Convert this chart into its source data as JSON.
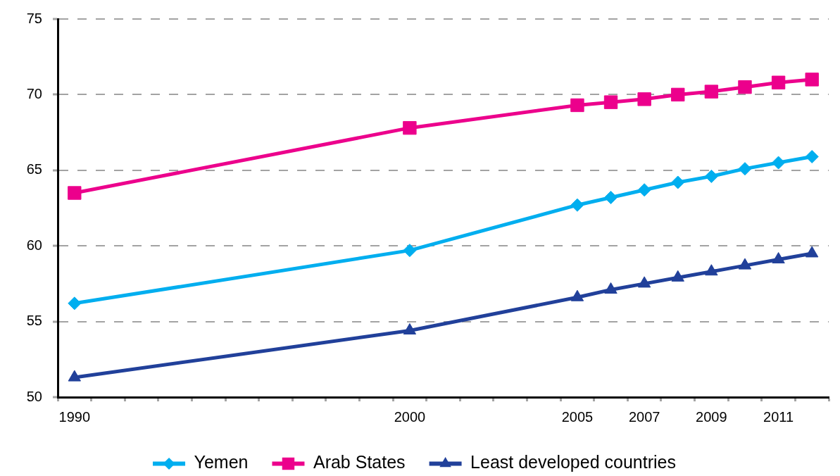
{
  "chart_data": {
    "type": "line",
    "x": [
      1990,
      2000,
      2005,
      2006,
      2007,
      2008,
      2009,
      2010,
      2011,
      2012
    ],
    "series": [
      {
        "name": "Yemen",
        "color": "#00aeef",
        "marker": "diamond",
        "values": [
          56.2,
          59.7,
          62.7,
          63.2,
          63.7,
          64.2,
          64.6,
          65.1,
          65.5,
          65.9
        ]
      },
      {
        "name": "Arab States",
        "color": "#ec008c",
        "marker": "square",
        "values": [
          63.5,
          67.8,
          69.3,
          69.5,
          69.7,
          70.0,
          70.2,
          70.5,
          70.8,
          71.0
        ]
      },
      {
        "name": "Least developed countries",
        "color": "#21409a",
        "marker": "triangle",
        "values": [
          51.3,
          54.4,
          56.6,
          57.1,
          57.5,
          57.9,
          58.3,
          58.7,
          59.1,
          59.5
        ]
      }
    ],
    "xlim": [
      1989.5,
      2012.5
    ],
    "xticks": [
      {
        "value": 1989.5,
        "label": null
      },
      1990,
      {
        "value": 1990.5,
        "label": null
      },
      {
        "value": 1991.5,
        "label": null
      },
      {
        "value": 1992.5,
        "label": null
      },
      {
        "value": 1993.5,
        "label": null
      },
      {
        "value": 1994.5,
        "label": null
      },
      {
        "value": 1995.5,
        "label": null
      },
      {
        "value": 1996.5,
        "label": null
      },
      {
        "value": 1997.5,
        "label": null
      },
      {
        "value": 1998.5,
        "label": null
      },
      {
        "value": 1999.5,
        "label": null
      },
      2000,
      {
        "value": 2000.5,
        "label": null
      },
      {
        "value": 2001.5,
        "label": null
      },
      {
        "value": 2002.5,
        "label": null
      },
      {
        "value": 2003.5,
        "label": null
      },
      {
        "value": 2004.5,
        "label": null
      },
      2005,
      {
        "value": 2005.5,
        "label": null
      },
      {
        "value": 2006.5,
        "label": null
      },
      2007,
      {
        "value": 2007.5,
        "label": null
      },
      {
        "value": 2008.5,
        "label": null
      },
      2009,
      {
        "value": 2009.5,
        "label": null
      },
      {
        "value": 2010.5,
        "label": null
      },
      2011,
      {
        "value": 2011.5,
        "label": null
      },
      {
        "value": 2012.5,
        "label": null
      }
    ],
    "ylim": [
      50,
      75
    ],
    "yticks": [
      50,
      55,
      60,
      65,
      70,
      75
    ],
    "grid": "y",
    "legend": "bottom",
    "line_style": "solid"
  }
}
